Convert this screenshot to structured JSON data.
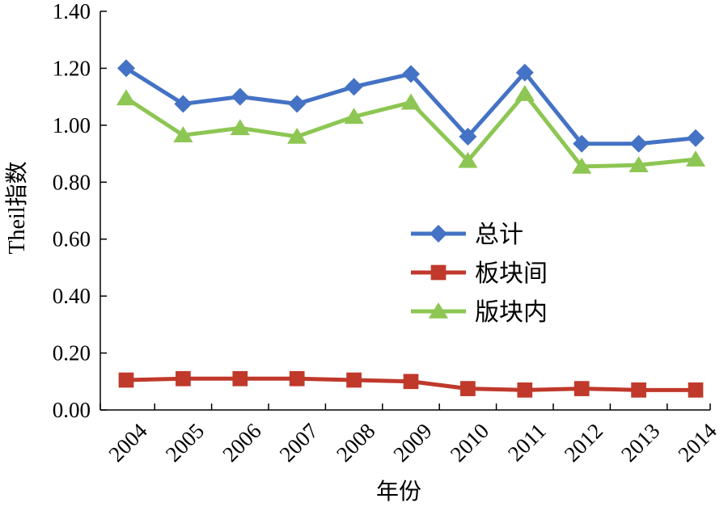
{
  "chart_data": {
    "type": "line",
    "title": "",
    "xlabel": "年份",
    "ylabel": "Theil指数",
    "categories": [
      "2004",
      "2005",
      "2006",
      "2007",
      "2008",
      "2009",
      "2010",
      "2011",
      "2012",
      "2013",
      "2014"
    ],
    "y_ticks": [
      "0.00",
      "0.20",
      "0.40",
      "0.60",
      "0.80",
      "1.00",
      "1.20",
      "1.40"
    ],
    "ylim": [
      0,
      1.4
    ],
    "grid": false,
    "legend_position": "center-right",
    "series": [
      {
        "name": "总计",
        "color": "#4472C4",
        "marker": "diamond",
        "values": [
          1.2,
          1.075,
          1.1,
          1.075,
          1.135,
          1.18,
          0.96,
          1.185,
          0.935,
          0.935,
          0.955
        ]
      },
      {
        "name": "板块间",
        "color": "#C0392B",
        "marker": "square",
        "values": [
          0.105,
          0.11,
          0.11,
          0.11,
          0.105,
          0.1,
          0.075,
          0.07,
          0.075,
          0.07,
          0.07
        ]
      },
      {
        "name": "版块内",
        "color": "#8DC653",
        "marker": "triangle",
        "values": [
          1.095,
          0.965,
          0.99,
          0.96,
          1.03,
          1.08,
          0.875,
          1.11,
          0.855,
          0.86,
          0.88
        ]
      }
    ]
  }
}
